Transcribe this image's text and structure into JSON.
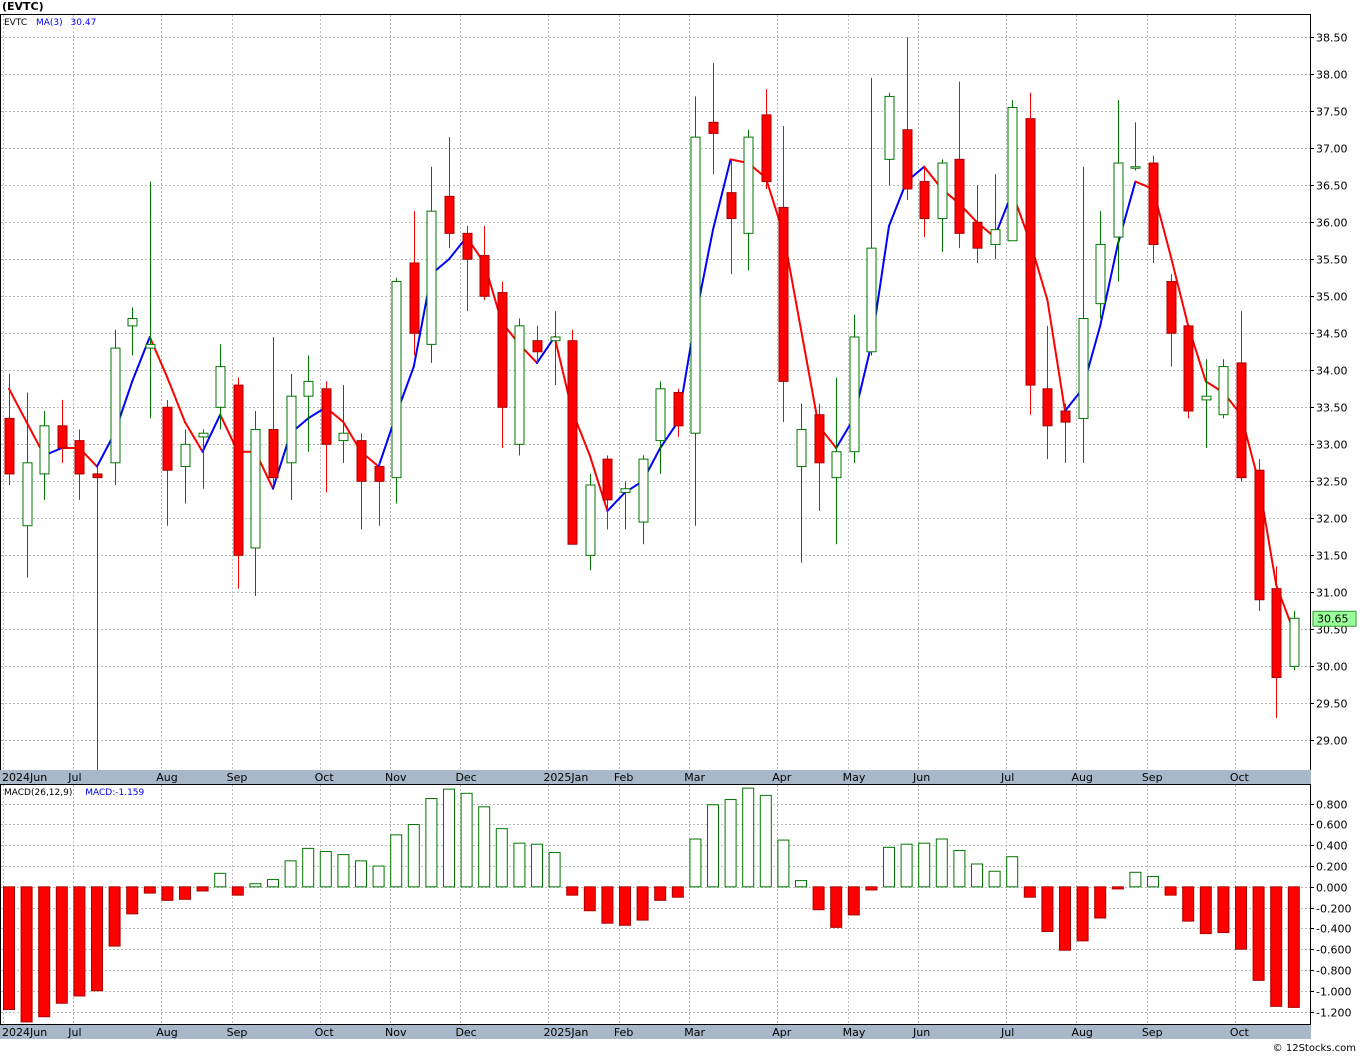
{
  "header": {
    "title": "(EVTC)",
    "legend_symbol": "EVTC",
    "legend_ma": "MA(3)",
    "legend_ma_value": "30.47",
    "macd_label": "MACD(26,12,9)",
    "macd_value_label": "MACD:-1.159",
    "credit": "© 12Stocks.com",
    "last_price_label": "30.65"
  },
  "colors": {
    "up": "#007700",
    "down": "#ff0000",
    "ma_up": "#0000ff",
    "ma_down": "#ff0000",
    "grid": "#bbbbbb",
    "axis_bar": "#a9b8c8",
    "price_tag": "#99ff99"
  },
  "chart_data": [
    {
      "type": "candlestick",
      "title": "",
      "ylim": [
        28.6,
        38.8
      ],
      "y_ticks": [
        "29.00",
        "29.50",
        "30.00",
        "30.50",
        "31.00",
        "31.50",
        "32.00",
        "32.50",
        "33.00",
        "33.50",
        "34.00",
        "34.50",
        "35.00",
        "35.50",
        "36.00",
        "36.50",
        "37.00",
        "37.50",
        "38.00",
        "38.50"
      ],
      "x_labels": [
        {
          "label": "2024Jun",
          "week": 0
        },
        {
          "label": "Jul",
          "week": 4
        },
        {
          "label": "Aug",
          "week": 9
        },
        {
          "label": "Sep",
          "week": 13
        },
        {
          "label": "Oct",
          "week": 18
        },
        {
          "label": "Nov",
          "week": 22
        },
        {
          "label": "Dec",
          "week": 26
        },
        {
          "label": "2025Jan",
          "week": 31
        },
        {
          "label": "Feb",
          "week": 35
        },
        {
          "label": "Mar",
          "week": 39
        },
        {
          "label": "Apr",
          "week": 44
        },
        {
          "label": "May",
          "week": 48
        },
        {
          "label": "Jun",
          "week": 52
        },
        {
          "label": "Jul",
          "week": 57
        },
        {
          "label": "Aug",
          "week": 61
        },
        {
          "label": "Sep",
          "week": 65
        },
        {
          "label": "Oct",
          "week": 70
        }
      ],
      "candles": [
        [
          33.35,
          33.95,
          32.45,
          32.6
        ],
        [
          31.9,
          33.7,
          31.2,
          32.75
        ],
        [
          32.6,
          33.45,
          32.25,
          33.25
        ],
        [
          33.25,
          33.6,
          32.75,
          32.95
        ],
        [
          33.05,
          33.2,
          32.25,
          32.6
        ],
        [
          32.6,
          32.7,
          28.55,
          32.55
        ],
        [
          32.75,
          34.55,
          32.45,
          34.3
        ],
        [
          34.6,
          34.85,
          34.2,
          34.7
        ],
        [
          34.3,
          36.55,
          33.35,
          34.35
        ],
        [
          33.5,
          33.6,
          31.9,
          32.65
        ],
        [
          32.7,
          33.2,
          32.2,
          33.0
        ],
        [
          33.1,
          33.2,
          32.4,
          33.15
        ],
        [
          33.5,
          34.35,
          33.2,
          34.05
        ],
        [
          33.8,
          33.9,
          31.05,
          31.5
        ],
        [
          31.6,
          33.45,
          30.95,
          33.2
        ],
        [
          33.2,
          34.45,
          32.45,
          32.55
        ],
        [
          32.75,
          33.95,
          32.25,
          33.65
        ],
        [
          33.65,
          34.2,
          32.9,
          33.85
        ],
        [
          33.75,
          33.85,
          32.35,
          33.0
        ],
        [
          33.05,
          33.8,
          32.75,
          33.15
        ],
        [
          33.05,
          33.15,
          31.85,
          32.5
        ],
        [
          32.7,
          32.75,
          31.9,
          32.5
        ],
        [
          32.55,
          35.25,
          32.2,
          35.2
        ],
        [
          35.45,
          36.15,
          34.2,
          34.5
        ],
        [
          34.35,
          36.75,
          34.1,
          36.15
        ],
        [
          36.35,
          37.15,
          35.65,
          35.85
        ],
        [
          35.85,
          35.95,
          34.8,
          35.5
        ],
        [
          35.55,
          35.95,
          34.95,
          35.0
        ],
        [
          35.05,
          35.2,
          32.95,
          33.5
        ],
        [
          33.0,
          34.7,
          32.85,
          34.6
        ],
        [
          34.4,
          34.6,
          34.1,
          34.25
        ],
        [
          34.4,
          34.8,
          33.8,
          34.45
        ],
        [
          34.4,
          34.55,
          31.65,
          31.65
        ],
        [
          31.5,
          32.6,
          31.3,
          32.45
        ],
        [
          32.8,
          32.85,
          31.85,
          32.25
        ],
        [
          32.35,
          32.5,
          31.85,
          32.4
        ],
        [
          31.95,
          32.85,
          31.65,
          32.8
        ],
        [
          33.05,
          33.85,
          32.6,
          33.75
        ],
        [
          33.7,
          33.75,
          33.1,
          33.25
        ],
        [
          33.15,
          37.7,
          31.9,
          37.15
        ],
        [
          37.35,
          38.15,
          36.65,
          37.2
        ],
        [
          36.4,
          36.85,
          35.3,
          36.05
        ],
        [
          35.85,
          37.25,
          35.35,
          37.15
        ],
        [
          37.45,
          37.8,
          36.45,
          36.55
        ],
        [
          36.2,
          37.3,
          33.3,
          33.85
        ],
        [
          32.7,
          33.55,
          31.4,
          33.2
        ],
        [
          33.4,
          33.55,
          32.1,
          32.75
        ],
        [
          32.55,
          33.9,
          31.65,
          32.9
        ],
        [
          32.9,
          34.75,
          32.75,
          34.45
        ],
        [
          34.25,
          37.95,
          34.2,
          35.65
        ],
        [
          36.85,
          37.75,
          36.5,
          37.7
        ],
        [
          37.25,
          38.5,
          36.3,
          36.45
        ],
        [
          36.55,
          36.75,
          35.8,
          36.05
        ],
        [
          36.05,
          36.85,
          35.6,
          36.8
        ],
        [
          36.85,
          37.9,
          35.65,
          35.85
        ],
        [
          36.0,
          36.5,
          35.45,
          35.65
        ],
        [
          35.7,
          36.65,
          35.5,
          35.9
        ],
        [
          35.75,
          37.65,
          35.75,
          37.55
        ],
        [
          37.4,
          37.75,
          33.4,
          33.8
        ],
        [
          33.75,
          34.6,
          32.8,
          33.25
        ],
        [
          33.45,
          33.55,
          32.75,
          33.3
        ],
        [
          33.35,
          36.75,
          32.75,
          34.7
        ],
        [
          34.9,
          36.15,
          34.7,
          35.7
        ],
        [
          35.8,
          37.65,
          35.2,
          36.8
        ],
        [
          36.75,
          37.35,
          36.7,
          36.75
        ],
        [
          36.8,
          36.9,
          35.45,
          35.7
        ],
        [
          35.2,
          35.3,
          34.05,
          34.5
        ],
        [
          34.6,
          34.6,
          33.35,
          33.45
        ],
        [
          33.6,
          34.15,
          32.95,
          33.65
        ],
        [
          33.4,
          34.15,
          33.35,
          34.05
        ],
        [
          34.1,
          34.8,
          32.5,
          32.55
        ],
        [
          32.65,
          32.8,
          30.75,
          30.9
        ],
        [
          31.05,
          31.35,
          29.3,
          29.85
        ],
        [
          30.0,
          30.75,
          29.95,
          30.65
        ]
      ],
      "ma3": [
        33.75,
        33.3,
        32.85,
        32.95,
        32.95,
        32.7,
        33.15,
        33.85,
        34.45,
        33.9,
        33.3,
        32.9,
        33.4,
        32.9,
        32.9,
        32.4,
        33.15,
        33.35,
        33.5,
        33.3,
        32.9,
        32.7,
        33.4,
        34.05,
        35.3,
        35.5,
        35.8,
        35.45,
        34.65,
        34.35,
        34.1,
        34.45,
        33.45,
        32.85,
        32.1,
        32.35,
        32.5,
        32.95,
        33.3,
        34.7,
        35.9,
        36.85,
        36.8,
        36.6,
        35.85,
        34.55,
        33.25,
        32.95,
        33.35,
        34.35,
        35.95,
        36.55,
        36.75,
        36.45,
        36.25,
        36.0,
        35.8,
        36.4,
        35.75,
        34.95,
        33.45,
        33.75,
        34.6,
        35.7,
        36.55,
        36.45,
        35.55,
        34.6,
        33.85,
        33.7,
        33.4,
        32.5,
        31.1,
        30.47
      ],
      "ma3_up": [
        false,
        false,
        false,
        true,
        false,
        false,
        true,
        true,
        true,
        false,
        false,
        false,
        true,
        false,
        false,
        false,
        true,
        true,
        true,
        false,
        false,
        false,
        true,
        true,
        true,
        true,
        true,
        false,
        false,
        false,
        false,
        true,
        false,
        false,
        false,
        true,
        true,
        true,
        true,
        true,
        true,
        true,
        false,
        false,
        false,
        false,
        false,
        false,
        true,
        true,
        true,
        true,
        true,
        false,
        false,
        false,
        false,
        true,
        false,
        false,
        false,
        true,
        true,
        true,
        true,
        false,
        false,
        false,
        false,
        false,
        false,
        false,
        false,
        false
      ]
    },
    {
      "type": "bar",
      "title": "",
      "ylim": [
        -1.32,
        0.98
      ],
      "y_ticks": [
        "-1.200",
        "-1.000",
        "-0.800",
        "-0.600",
        "-0.400",
        "-0.200",
        "0.000",
        "0.200",
        "0.400",
        "0.600",
        "0.800"
      ],
      "values": [
        -1.18,
        -1.3,
        -1.25,
        -1.12,
        -1.05,
        -1.0,
        -0.57,
        -0.26,
        -0.06,
        -0.13,
        -0.12,
        -0.04,
        0.13,
        -0.08,
        0.03,
        0.07,
        0.25,
        0.37,
        0.34,
        0.31,
        0.25,
        0.2,
        0.5,
        0.6,
        0.85,
        0.94,
        0.9,
        0.77,
        0.56,
        0.42,
        0.41,
        0.33,
        -0.08,
        -0.23,
        -0.35,
        -0.37,
        -0.32,
        -0.13,
        -0.1,
        0.46,
        0.79,
        0.84,
        0.95,
        0.88,
        0.45,
        0.06,
        -0.22,
        -0.39,
        -0.27,
        -0.03,
        0.38,
        0.41,
        0.42,
        0.46,
        0.35,
        0.22,
        0.15,
        0.29,
        -0.1,
        -0.43,
        -0.61,
        -0.52,
        -0.3,
        -0.02,
        0.14,
        0.1,
        -0.08,
        -0.33,
        -0.45,
        -0.44,
        -0.6,
        -0.9,
        -1.15,
        -1.16
      ]
    }
  ]
}
